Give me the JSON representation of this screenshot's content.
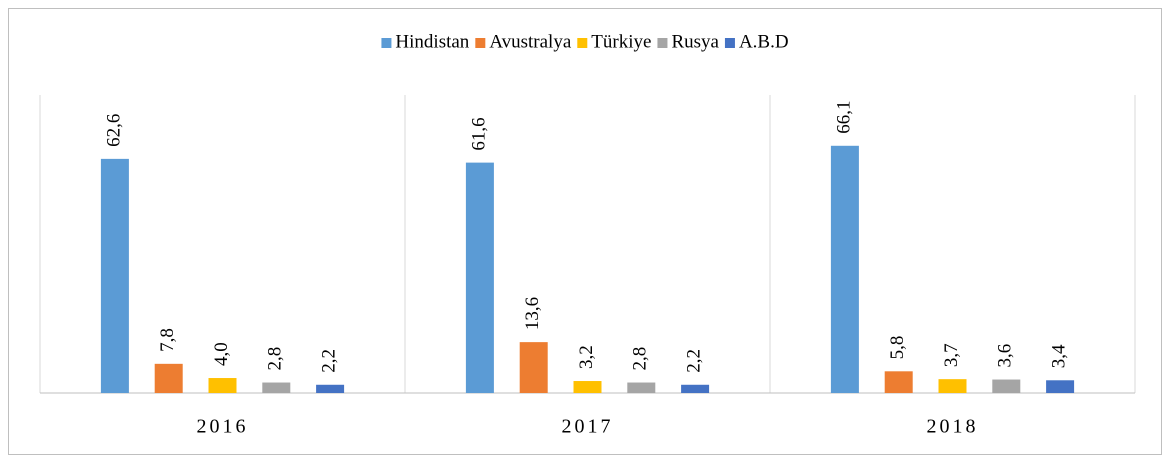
{
  "chart_data": {
    "type": "bar",
    "categories": [
      "2016",
      "2017",
      "2018"
    ],
    "series": [
      {
        "name": "Hindistan",
        "color": "#5b9bd5",
        "values": [
          62.6,
          61.6,
          66.1
        ],
        "value_labels": [
          "62,6",
          "61,6",
          "66,1"
        ]
      },
      {
        "name": "Avustralya",
        "color": "#ed7d31",
        "values": [
          7.8,
          13.6,
          5.8
        ],
        "value_labels": [
          "7,8",
          "13,6",
          "5,8"
        ]
      },
      {
        "name": "Türkiye",
        "color": "#ffc000",
        "values": [
          4.0,
          3.2,
          3.7
        ],
        "value_labels": [
          "4,0",
          "3,2",
          "3,7"
        ]
      },
      {
        "name": "Rusya",
        "color": "#a5a5a5",
        "values": [
          2.8,
          2.8,
          3.6
        ],
        "value_labels": [
          "2,8",
          "2,8",
          "3,6"
        ]
      },
      {
        "name": "A.B.D",
        "color": "#4472c4",
        "values": [
          2.2,
          2.2,
          3.4
        ],
        "value_labels": [
          "2,2",
          "2,2",
          "3,4"
        ]
      }
    ],
    "legend": "top"
  }
}
